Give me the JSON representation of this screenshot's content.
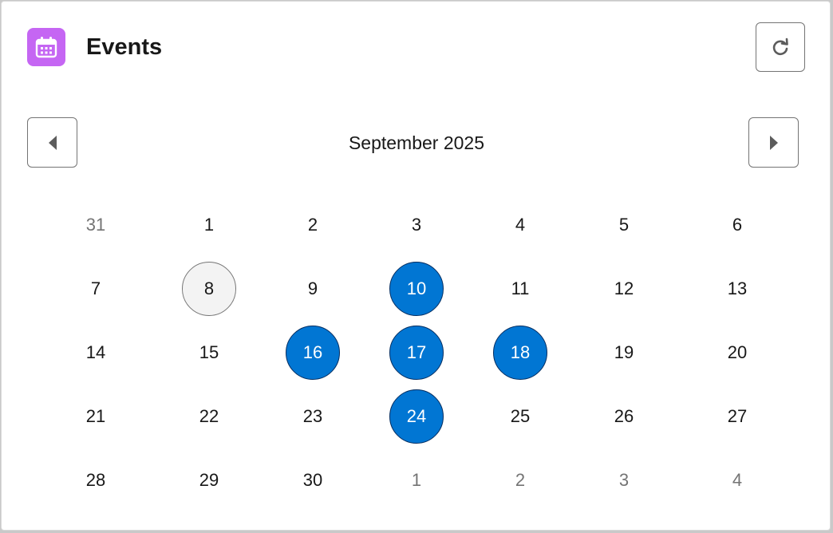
{
  "header": {
    "title": "Events",
    "icon": "calendar-icon",
    "icon_color": "#c566f3",
    "refresh_icon": "refresh-icon"
  },
  "calendar": {
    "month_label": "September 2025",
    "prev_icon": "left-triangle-icon",
    "next_icon": "right-triangle-icon",
    "event_color": "#0176d3",
    "weeks": [
      [
        {
          "label": "31",
          "outside": true
        },
        {
          "label": "1"
        },
        {
          "label": "2"
        },
        {
          "label": "3"
        },
        {
          "label": "4"
        },
        {
          "label": "5"
        },
        {
          "label": "6"
        }
      ],
      [
        {
          "label": "7"
        },
        {
          "label": "8",
          "today": true
        },
        {
          "label": "9"
        },
        {
          "label": "10",
          "event": true
        },
        {
          "label": "11"
        },
        {
          "label": "12"
        },
        {
          "label": "13"
        }
      ],
      [
        {
          "label": "14"
        },
        {
          "label": "15"
        },
        {
          "label": "16",
          "event": true
        },
        {
          "label": "17",
          "event": true
        },
        {
          "label": "18",
          "event": true
        },
        {
          "label": "19"
        },
        {
          "label": "20"
        }
      ],
      [
        {
          "label": "21"
        },
        {
          "label": "22"
        },
        {
          "label": "23"
        },
        {
          "label": "24",
          "event": true
        },
        {
          "label": "25"
        },
        {
          "label": "26"
        },
        {
          "label": "27"
        }
      ],
      [
        {
          "label": "28"
        },
        {
          "label": "29"
        },
        {
          "label": "30"
        },
        {
          "label": "1",
          "outside": true
        },
        {
          "label": "2",
          "outside": true
        },
        {
          "label": "3",
          "outside": true
        },
        {
          "label": "4",
          "outside": true
        }
      ]
    ]
  }
}
